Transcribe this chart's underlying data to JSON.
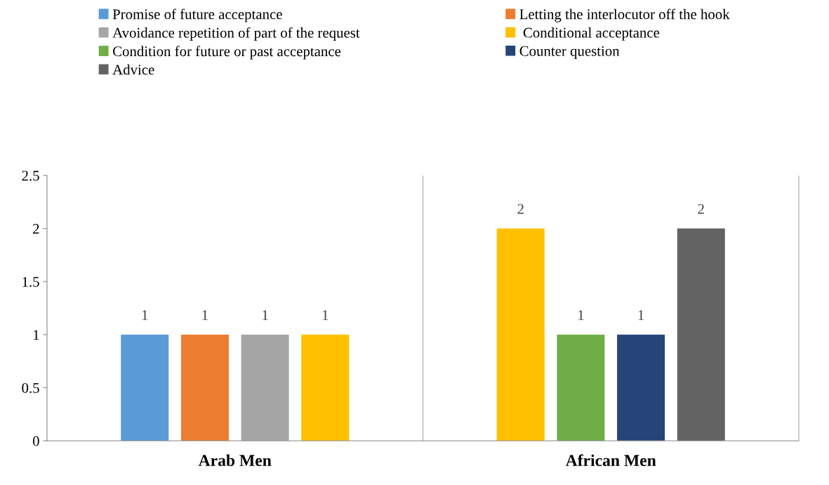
{
  "chart_data": {
    "type": "bar",
    "categories": [
      "Arab Men",
      "African Men"
    ],
    "series": [
      {
        "name": "Promise of future acceptance",
        "color": "#5b9bd5",
        "values": [
          1,
          null
        ]
      },
      {
        "name": "Letting the interlocutor off the hook",
        "color": "#ed7d31",
        "values": [
          1,
          null
        ]
      },
      {
        "name": "Avoidance repetition of part of the request",
        "color": "#a5a5a5",
        "values": [
          1,
          null
        ]
      },
      {
        "name": " Conditional acceptance",
        "color": "#ffc000",
        "values": [
          1,
          2
        ]
      },
      {
        "name": "Condition for future or past acceptance",
        "color": "#70ad47",
        "values": [
          null,
          1
        ]
      },
      {
        "name": "Counter question",
        "color": "#264478",
        "values": [
          null,
          1
        ]
      },
      {
        "name": "Advice",
        "color": "#636363",
        "values": [
          null,
          2
        ]
      }
    ],
    "ylim": [
      0,
      2.5
    ],
    "yticks": [
      0,
      {
        "value": 0.5,
        "label": "0.5"
      },
      1,
      {
        "value": 1.5,
        "label": "1.5"
      },
      2,
      {
        "value": 2.5,
        "label": "2.5"
      }
    ],
    "data_labels": true,
    "legend": "top",
    "grid": false
  }
}
